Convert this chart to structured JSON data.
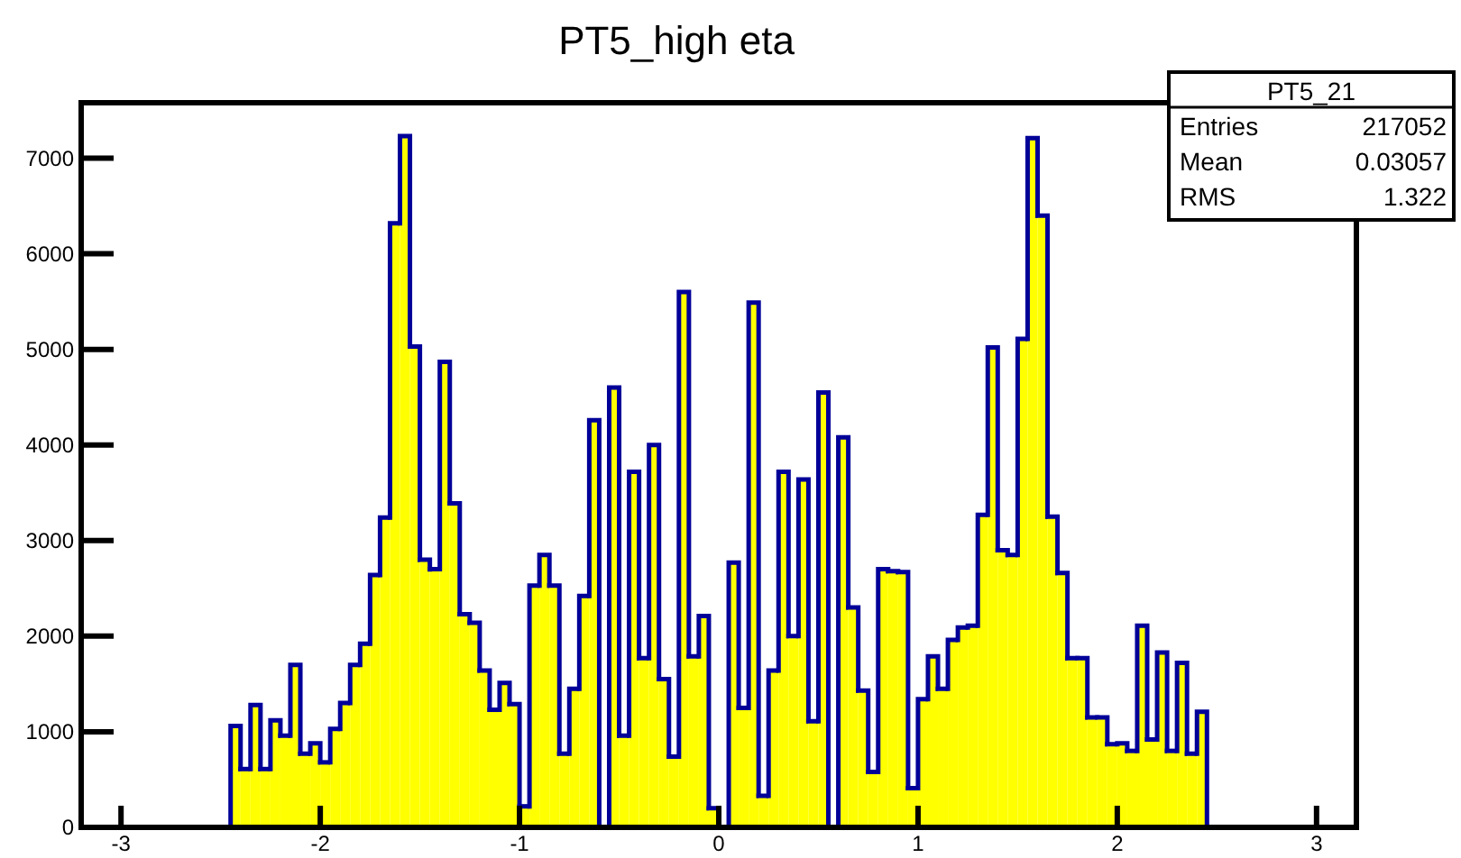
{
  "chart_data": {
    "type": "histogram",
    "title": "PT5_high eta",
    "bins": [
      -2.5,
      -2.45,
      -2.4,
      -2.35,
      -2.3,
      -2.25,
      -2.2,
      -2.15,
      -2.1,
      -2.05,
      -2.0,
      -1.95,
      -1.9,
      -1.85,
      -1.8,
      -1.75,
      -1.7,
      -1.65,
      -1.6,
      -1.55,
      -1.5,
      -1.45,
      -1.4,
      -1.35,
      -1.3,
      -1.25,
      -1.2,
      -1.15,
      -1.1,
      -1.05,
      -1.0,
      -0.95,
      -0.9,
      -0.85,
      -0.8,
      -0.75,
      -0.7,
      -0.65,
      -0.6,
      -0.55,
      -0.5,
      -0.45,
      -0.4,
      -0.35,
      -0.3,
      -0.25,
      -0.2,
      -0.15,
      -0.1,
      -0.05,
      0.0,
      0.05,
      0.1,
      0.15,
      0.2,
      0.25,
      0.3,
      0.35,
      0.4,
      0.45,
      0.5,
      0.55,
      0.6,
      0.65,
      0.7,
      0.75,
      0.8,
      0.85,
      0.9,
      0.95,
      1.0,
      1.05,
      1.1,
      1.15,
      1.2,
      1.25,
      1.3,
      1.35,
      1.4,
      1.45,
      1.5,
      1.55,
      1.6,
      1.65,
      1.7,
      1.75,
      1.8,
      1.85,
      1.9,
      1.95,
      2.0,
      2.05,
      2.1,
      2.15,
      2.2,
      2.25,
      2.3,
      2.35,
      2.4,
      2.45,
      2.5
    ],
    "values": [
      0,
      1060,
      610,
      1280,
      610,
      1120,
      960,
      1700,
      770,
      880,
      680,
      1030,
      1300,
      1700,
      1920,
      2640,
      3240,
      6320,
      7230,
      5030,
      2800,
      2700,
      4870,
      3390,
      2230,
      2140,
      1640,
      1230,
      1510,
      1290,
      220,
      2530,
      2850,
      2530,
      770,
      1450,
      2420,
      4260,
      0,
      4600,
      960,
      3720,
      1770,
      4000,
      1550,
      740,
      5600,
      1790,
      2210,
      200,
      0,
      2770,
      1250,
      5490,
      330,
      1640,
      3720,
      2000,
      3640,
      1110,
      4550,
      0,
      4080,
      2300,
      1430,
      580,
      2700,
      2680,
      2670,
      410,
      1340,
      1790,
      1450,
      1960,
      2090,
      2110,
      3270,
      5020,
      2900,
      2850,
      5110,
      7210,
      6400,
      3250,
      2660,
      1770,
      1770,
      1150,
      1150,
      870,
      880,
      800,
      2110,
      920,
      1830,
      800,
      1720,
      770,
      1210,
      0
    ],
    "color": "#ffff00",
    "xlim": [
      -3.2,
      3.2
    ],
    "xticks": [
      -3,
      -2,
      -1,
      0,
      1,
      2,
      3
    ],
    "ylim": [
      0,
      7580
    ],
    "yticks": [
      0,
      1000,
      2000,
      3000,
      4000,
      5000,
      6000,
      7000
    ],
    "annotations": [
      "PT5_21",
      "Entries",
      "217052",
      "Mean",
      "0.03057",
      "RMS",
      "1.322"
    ]
  }
}
